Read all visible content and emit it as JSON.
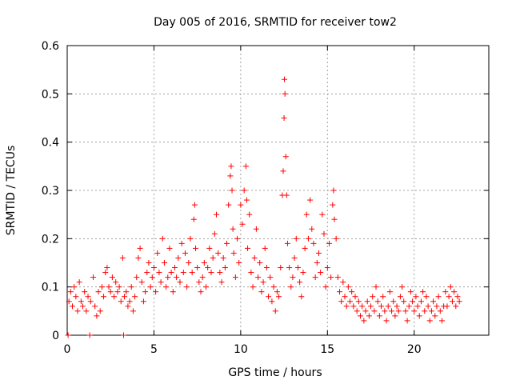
{
  "chart_data": {
    "type": "scatter",
    "title": "Day 005 of 2016, SRMTID for receiver tow2",
    "xlabel": "GPS time / hours",
    "ylabel": "SRMTID / TECUs",
    "xlim": [
      0,
      24.3
    ],
    "ylim": [
      0,
      0.6
    ],
    "x_ticks": [
      0,
      5,
      10,
      15,
      20
    ],
    "x_tick_labels": [
      "0",
      "5",
      "10",
      "15",
      "20"
    ],
    "y_ticks": [
      0,
      0.1,
      0.2,
      0.3,
      0.4,
      0.5,
      0.6
    ],
    "y_tick_labels": [
      "0",
      "0.1",
      "0.2",
      "0.3",
      "0.4",
      "0.5",
      "0.6"
    ],
    "grid": true,
    "marker": "+",
    "color": "#ff0000",
    "series": [
      {
        "name": "SRMTID",
        "points": [
          [
            0.05,
            0.0
          ],
          [
            0.1,
            0.07
          ],
          [
            0.2,
            0.09
          ],
          [
            0.3,
            0.06
          ],
          [
            0.4,
            0.1
          ],
          [
            0.5,
            0.08
          ],
          [
            0.6,
            0.05
          ],
          [
            0.7,
            0.11
          ],
          [
            0.8,
            0.07
          ],
          [
            0.9,
            0.06
          ],
          [
            1.0,
            0.09
          ],
          [
            1.1,
            0.05
          ],
          [
            1.2,
            0.08
          ],
          [
            1.3,
            0.0
          ],
          [
            1.35,
            0.07
          ],
          [
            1.5,
            0.12
          ],
          [
            1.6,
            0.06
          ],
          [
            1.7,
            0.04
          ],
          [
            1.8,
            0.09
          ],
          [
            1.9,
            0.05
          ],
          [
            2.0,
            0.1
          ],
          [
            2.1,
            0.08
          ],
          [
            2.2,
            0.13
          ],
          [
            2.3,
            0.14
          ],
          [
            2.4,
            0.1
          ],
          [
            2.5,
            0.09
          ],
          [
            2.6,
            0.12
          ],
          [
            2.7,
            0.08
          ],
          [
            2.8,
            0.11
          ],
          [
            2.9,
            0.09
          ],
          [
            3.0,
            0.1
          ],
          [
            3.1,
            0.07
          ],
          [
            3.2,
            0.16
          ],
          [
            3.25,
            0.0
          ],
          [
            3.3,
            0.08
          ],
          [
            3.4,
            0.09
          ],
          [
            3.5,
            0.06
          ],
          [
            3.6,
            0.07
          ],
          [
            3.7,
            0.1
          ],
          [
            3.8,
            0.05
          ],
          [
            3.9,
            0.08
          ],
          [
            4.0,
            0.12
          ],
          [
            4.1,
            0.16
          ],
          [
            4.2,
            0.18
          ],
          [
            4.3,
            0.11
          ],
          [
            4.4,
            0.07
          ],
          [
            4.5,
            0.09
          ],
          [
            4.6,
            0.13
          ],
          [
            4.7,
            0.15
          ],
          [
            4.8,
            0.1
          ],
          [
            4.9,
            0.12
          ],
          [
            5.0,
            0.14
          ],
          [
            5.1,
            0.09
          ],
          [
            5.2,
            0.17
          ],
          [
            5.3,
            0.13
          ],
          [
            5.4,
            0.11
          ],
          [
            5.5,
            0.2
          ],
          [
            5.6,
            0.15
          ],
          [
            5.7,
            0.1
          ],
          [
            5.8,
            0.12
          ],
          [
            5.9,
            0.18
          ],
          [
            6.0,
            0.13
          ],
          [
            6.1,
            0.09
          ],
          [
            6.2,
            0.14
          ],
          [
            6.3,
            0.12
          ],
          [
            6.4,
            0.16
          ],
          [
            6.5,
            0.11
          ],
          [
            6.6,
            0.19
          ],
          [
            6.7,
            0.13
          ],
          [
            6.8,
            0.17
          ],
          [
            6.9,
            0.1
          ],
          [
            7.0,
            0.15
          ],
          [
            7.1,
            0.2
          ],
          [
            7.2,
            0.13
          ],
          [
            7.3,
            0.24
          ],
          [
            7.35,
            0.27
          ],
          [
            7.4,
            0.18
          ],
          [
            7.5,
            0.14
          ],
          [
            7.6,
            0.11
          ],
          [
            7.7,
            0.09
          ],
          [
            7.8,
            0.12
          ],
          [
            7.9,
            0.15
          ],
          [
            8.0,
            0.1
          ],
          [
            8.1,
            0.14
          ],
          [
            8.2,
            0.18
          ],
          [
            8.3,
            0.13
          ],
          [
            8.4,
            0.16
          ],
          [
            8.5,
            0.21
          ],
          [
            8.6,
            0.25
          ],
          [
            8.7,
            0.17
          ],
          [
            8.8,
            0.13
          ],
          [
            8.9,
            0.11
          ],
          [
            9.0,
            0.16
          ],
          [
            9.1,
            0.14
          ],
          [
            9.2,
            0.19
          ],
          [
            9.3,
            0.27
          ],
          [
            9.4,
            0.33
          ],
          [
            9.45,
            0.35
          ],
          [
            9.5,
            0.3
          ],
          [
            9.55,
            0.22
          ],
          [
            9.6,
            0.17
          ],
          [
            9.7,
            0.12
          ],
          [
            9.8,
            0.2
          ],
          [
            9.9,
            0.15
          ],
          [
            10.0,
            0.27
          ],
          [
            10.1,
            0.23
          ],
          [
            10.2,
            0.3
          ],
          [
            10.3,
            0.35
          ],
          [
            10.35,
            0.28
          ],
          [
            10.4,
            0.18
          ],
          [
            10.5,
            0.25
          ],
          [
            10.6,
            0.13
          ],
          [
            10.7,
            0.1
          ],
          [
            10.8,
            0.16
          ],
          [
            10.9,
            0.22
          ],
          [
            11.0,
            0.12
          ],
          [
            11.1,
            0.15
          ],
          [
            11.2,
            0.09
          ],
          [
            11.3,
            0.11
          ],
          [
            11.4,
            0.18
          ],
          [
            11.5,
            0.14
          ],
          [
            11.6,
            0.08
          ],
          [
            11.7,
            0.12
          ],
          [
            11.8,
            0.07
          ],
          [
            11.9,
            0.1
          ],
          [
            12.0,
            0.05
          ],
          [
            12.1,
            0.09
          ],
          [
            12.2,
            0.08
          ],
          [
            12.3,
            0.14
          ],
          [
            12.4,
            0.29
          ],
          [
            12.45,
            0.34
          ],
          [
            12.5,
            0.45
          ],
          [
            12.52,
            0.53
          ],
          [
            12.55,
            0.5
          ],
          [
            12.6,
            0.37
          ],
          [
            12.65,
            0.29
          ],
          [
            12.7,
            0.19
          ],
          [
            12.8,
            0.14
          ],
          [
            12.9,
            0.1
          ],
          [
            13.0,
            0.12
          ],
          [
            13.1,
            0.16
          ],
          [
            13.2,
            0.2
          ],
          [
            13.3,
            0.14
          ],
          [
            13.4,
            0.11
          ],
          [
            13.5,
            0.08
          ],
          [
            13.6,
            0.13
          ],
          [
            13.7,
            0.18
          ],
          [
            13.8,
            0.25
          ],
          [
            13.9,
            0.2
          ],
          [
            14.0,
            0.28
          ],
          [
            14.1,
            0.22
          ],
          [
            14.2,
            0.19
          ],
          [
            14.3,
            0.12
          ],
          [
            14.4,
            0.15
          ],
          [
            14.5,
            0.17
          ],
          [
            14.6,
            0.13
          ],
          [
            14.7,
            0.25
          ],
          [
            14.8,
            0.21
          ],
          [
            14.9,
            0.1
          ],
          [
            15.0,
            0.14
          ],
          [
            15.1,
            0.19
          ],
          [
            15.2,
            0.12
          ],
          [
            15.3,
            0.27
          ],
          [
            15.35,
            0.3
          ],
          [
            15.4,
            0.24
          ],
          [
            15.5,
            0.2
          ],
          [
            15.6,
            0.12
          ],
          [
            15.7,
            0.09
          ],
          [
            15.8,
            0.07
          ],
          [
            15.9,
            0.11
          ],
          [
            16.0,
            0.08
          ],
          [
            16.1,
            0.06
          ],
          [
            16.2,
            0.1
          ],
          [
            16.3,
            0.07
          ],
          [
            16.4,
            0.09
          ],
          [
            16.5,
            0.06
          ],
          [
            16.6,
            0.08
          ],
          [
            16.7,
            0.05
          ],
          [
            16.8,
            0.07
          ],
          [
            16.9,
            0.04
          ],
          [
            17.0,
            0.06
          ],
          [
            17.1,
            0.03
          ],
          [
            17.2,
            0.05
          ],
          [
            17.3,
            0.07
          ],
          [
            17.4,
            0.04
          ],
          [
            17.5,
            0.06
          ],
          [
            17.6,
            0.08
          ],
          [
            17.7,
            0.05
          ],
          [
            17.8,
            0.1
          ],
          [
            17.9,
            0.07
          ],
          [
            18.0,
            0.04
          ],
          [
            18.1,
            0.06
          ],
          [
            18.2,
            0.08
          ],
          [
            18.3,
            0.05
          ],
          [
            18.4,
            0.03
          ],
          [
            18.5,
            0.06
          ],
          [
            18.6,
            0.09
          ],
          [
            18.7,
            0.05
          ],
          [
            18.8,
            0.07
          ],
          [
            18.9,
            0.04
          ],
          [
            19.0,
            0.06
          ],
          [
            19.1,
            0.05
          ],
          [
            19.2,
            0.08
          ],
          [
            19.3,
            0.1
          ],
          [
            19.4,
            0.07
          ],
          [
            19.5,
            0.05
          ],
          [
            19.6,
            0.03
          ],
          [
            19.7,
            0.06
          ],
          [
            19.8,
            0.09
          ],
          [
            19.9,
            0.07
          ],
          [
            20.0,
            0.05
          ],
          [
            20.1,
            0.08
          ],
          [
            20.2,
            0.06
          ],
          [
            20.3,
            0.04
          ],
          [
            20.4,
            0.07
          ],
          [
            20.5,
            0.09
          ],
          [
            20.6,
            0.05
          ],
          [
            20.7,
            0.08
          ],
          [
            20.8,
            0.06
          ],
          [
            20.9,
            0.03
          ],
          [
            21.0,
            0.05
          ],
          [
            21.1,
            0.07
          ],
          [
            21.2,
            0.04
          ],
          [
            21.3,
            0.06
          ],
          [
            21.4,
            0.08
          ],
          [
            21.5,
            0.05
          ],
          [
            21.6,
            0.03
          ],
          [
            21.7,
            0.06
          ],
          [
            21.8,
            0.09
          ],
          [
            21.9,
            0.06
          ],
          [
            22.0,
            0.08
          ],
          [
            22.1,
            0.1
          ],
          [
            22.2,
            0.07
          ],
          [
            22.3,
            0.09
          ],
          [
            22.4,
            0.06
          ],
          [
            22.5,
            0.08
          ],
          [
            22.6,
            0.07
          ]
        ]
      }
    ]
  }
}
